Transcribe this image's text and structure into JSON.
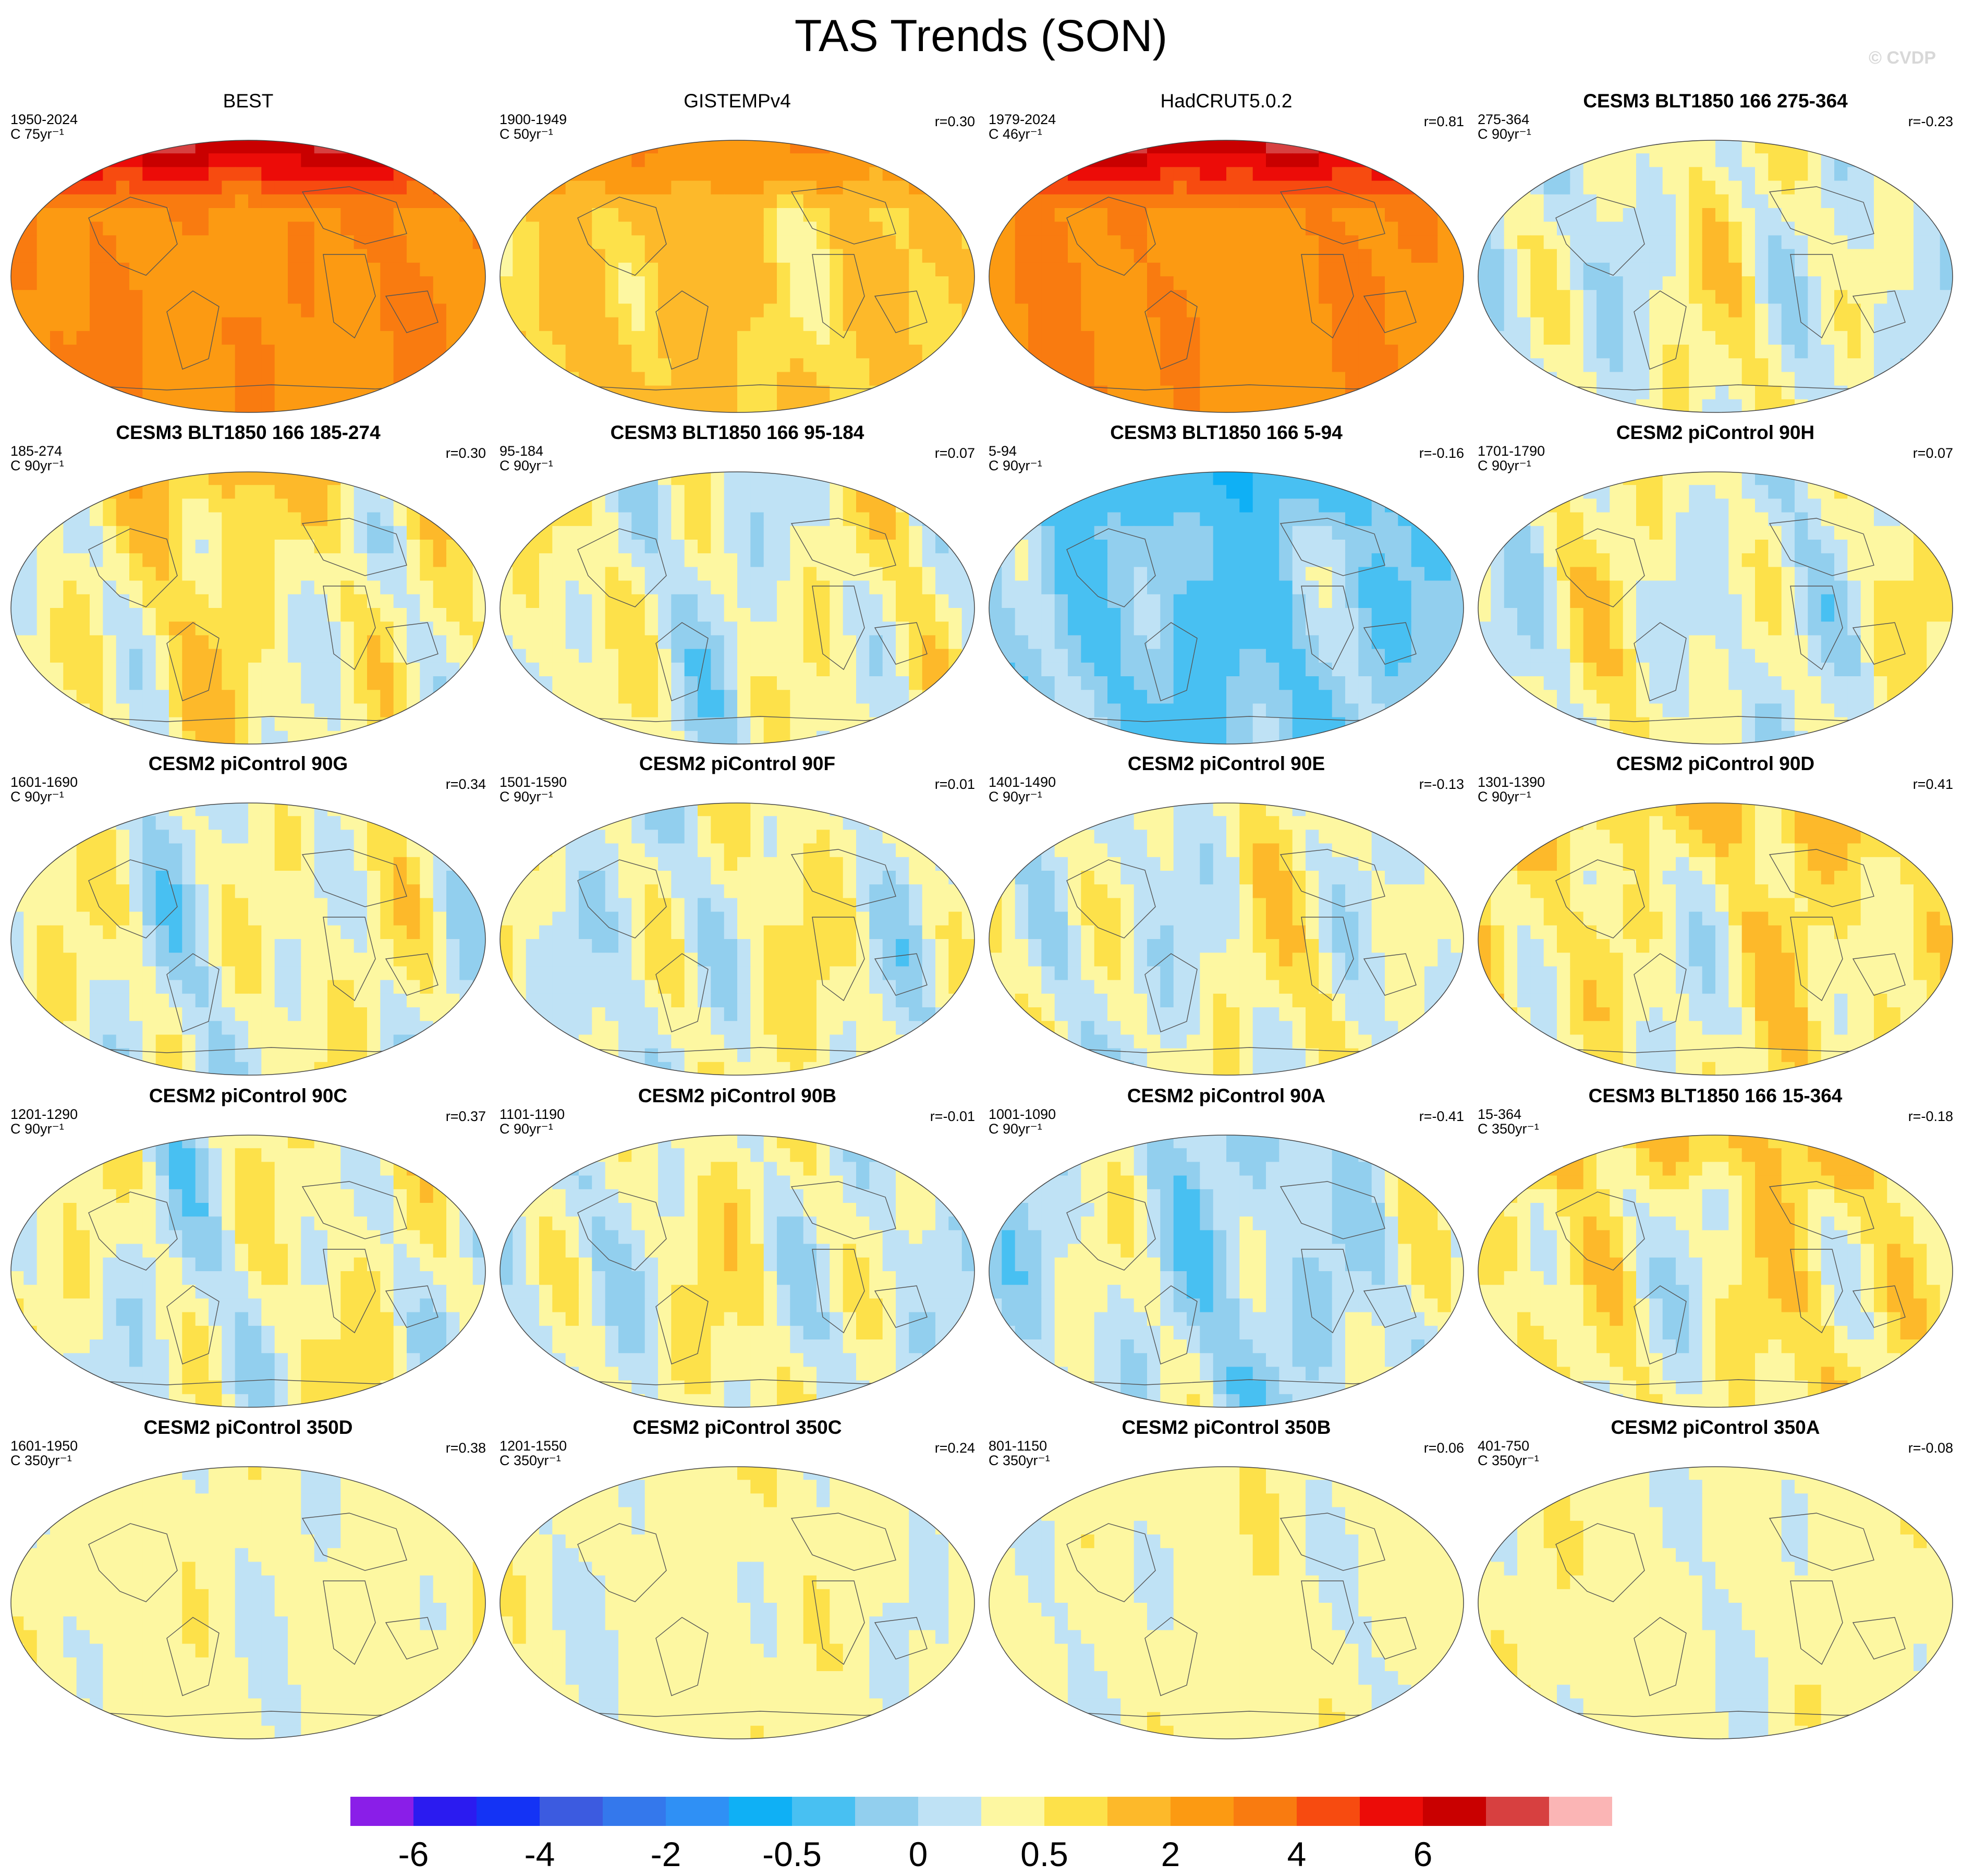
{
  "title": "TAS Trends (SON)",
  "copyright": "© CVDP",
  "panels": [
    {
      "title": "BEST",
      "bold": false,
      "date": "1950-2024",
      "len": "C 75yr⁻¹",
      "corr": "",
      "dataset": "obs",
      "regime": "strong-warm"
    },
    {
      "title": "GISTEMPv4",
      "bold": false,
      "date": "1900-1949",
      "len": "C 50yr⁻¹",
      "corr": "r=0.30",
      "dataset": "obs",
      "regime": "moderate-warm"
    },
    {
      "title": "HadCRUT5.0.2",
      "bold": false,
      "date": "1979-2024",
      "len": "C 46yr⁻¹",
      "corr": "r=0.81",
      "dataset": "obs",
      "regime": "strong-warm"
    },
    {
      "title": "CESM3 BLT1850 166 275-364",
      "bold": true,
      "date": "275-364",
      "len": "C 90yr⁻¹",
      "corr": "r=-0.23",
      "dataset": "model",
      "regime": "mixed"
    },
    {
      "title": "CESM3 BLT1850 166 185-274",
      "bold": true,
      "date": "185-274",
      "len": "C 90yr⁻¹",
      "corr": "r=0.30",
      "dataset": "model",
      "regime": "mixed-warm"
    },
    {
      "title": "CESM3 BLT1850 166 95-184",
      "bold": true,
      "date": "95-184",
      "len": "C 90yr⁻¹",
      "corr": "r=0.07",
      "dataset": "model",
      "regime": "mixed"
    },
    {
      "title": "CESM3 BLT1850 166 5-94",
      "bold": true,
      "date": "5-94",
      "len": "C 90yr⁻¹",
      "corr": "r=-0.16",
      "dataset": "model",
      "regime": "cool"
    },
    {
      "title": "CESM2 piControl 90H",
      "bold": true,
      "date": "1701-1790",
      "len": "C 90yr⁻¹",
      "corr": "r=0.07",
      "dataset": "model",
      "regime": "mixed"
    },
    {
      "title": "CESM2 piControl 90G",
      "bold": true,
      "date": "1601-1690",
      "len": "C 90yr⁻¹",
      "corr": "r=0.34",
      "dataset": "model",
      "regime": "mixed"
    },
    {
      "title": "CESM2 piControl 90F",
      "bold": true,
      "date": "1501-1590",
      "len": "C 90yr⁻¹",
      "corr": "r=0.01",
      "dataset": "model",
      "regime": "mixed"
    },
    {
      "title": "CESM2 piControl 90E",
      "bold": true,
      "date": "1401-1490",
      "len": "C 90yr⁻¹",
      "corr": "r=-0.13",
      "dataset": "model",
      "regime": "mixed"
    },
    {
      "title": "CESM2 piControl 90D",
      "bold": true,
      "date": "1301-1390",
      "len": "C 90yr⁻¹",
      "corr": "r=0.41",
      "dataset": "model",
      "regime": "mixed-warm"
    },
    {
      "title": "CESM2 piControl 90C",
      "bold": true,
      "date": "1201-1290",
      "len": "C 90yr⁻¹",
      "corr": "r=0.37",
      "dataset": "model",
      "regime": "mixed"
    },
    {
      "title": "CESM2 piControl 90B",
      "bold": true,
      "date": "1101-1190",
      "len": "C 90yr⁻¹",
      "corr": "r=-0.01",
      "dataset": "model",
      "regime": "mixed"
    },
    {
      "title": "CESM2 piControl 90A",
      "bold": true,
      "date": "1001-1090",
      "len": "C 90yr⁻¹",
      "corr": "r=-0.41",
      "dataset": "model",
      "regime": "mixed-cool"
    },
    {
      "title": "CESM3 BLT1850 166 15-364",
      "bold": true,
      "date": "15-364",
      "len": "C 350yr⁻¹",
      "corr": "r=-0.18",
      "dataset": "model",
      "regime": "mixed-warm"
    },
    {
      "title": "CESM2 piControl 350D",
      "bold": true,
      "date": "1601-1950",
      "len": "C 350yr⁻¹",
      "corr": "r=0.38",
      "dataset": "model",
      "regime": "weak"
    },
    {
      "title": "CESM2 piControl 350C",
      "bold": true,
      "date": "1201-1550",
      "len": "C 350yr⁻¹",
      "corr": "r=0.24",
      "dataset": "model",
      "regime": "weak"
    },
    {
      "title": "CESM2 piControl 350B",
      "bold": true,
      "date": "801-1150",
      "len": "C 350yr⁻¹",
      "corr": "r=0.06",
      "dataset": "model",
      "regime": "weak"
    },
    {
      "title": "CESM2 piControl 350A",
      "bold": true,
      "date": "401-750",
      "len": "C 350yr⁻¹",
      "corr": "r=-0.08",
      "dataset": "model",
      "regime": "weak"
    }
  ],
  "colorbar": {
    "levels": [
      "-6",
      "-5",
      "-4",
      "-3",
      "-2",
      "-1",
      "-0.5",
      "-0.25",
      "0",
      "0.25",
      "0.5",
      "1",
      "2",
      "3",
      "4",
      "5",
      "6"
    ],
    "labeled": [
      {
        "label": "-6",
        "boundary": 1
      },
      {
        "label": "-4",
        "boundary": 3
      },
      {
        "label": "-2",
        "boundary": 5
      },
      {
        "label": "-0.5",
        "boundary": 7
      },
      {
        "label": "0",
        "boundary": 9
      },
      {
        "label": "0.5",
        "boundary": 11
      },
      {
        "label": "2",
        "boundary": 13
      },
      {
        "label": "4",
        "boundary": 15
      },
      {
        "label": "6",
        "boundary": 17
      }
    ],
    "colors": [
      "#8a1ee8",
      "#2b1bf0",
      "#1433f5",
      "#3c5be0",
      "#3478ec",
      "#2f90f5",
      "#0fb0f5",
      "#48c0f2",
      "#92cfee",
      "#bfe2f5",
      "#fdf7a1",
      "#fde14a",
      "#fdb92a",
      "#fc9a12",
      "#f97b10",
      "#f74b10",
      "#ec0c08",
      "#c90000",
      "#d74040",
      "#fbb5b5"
    ]
  }
}
